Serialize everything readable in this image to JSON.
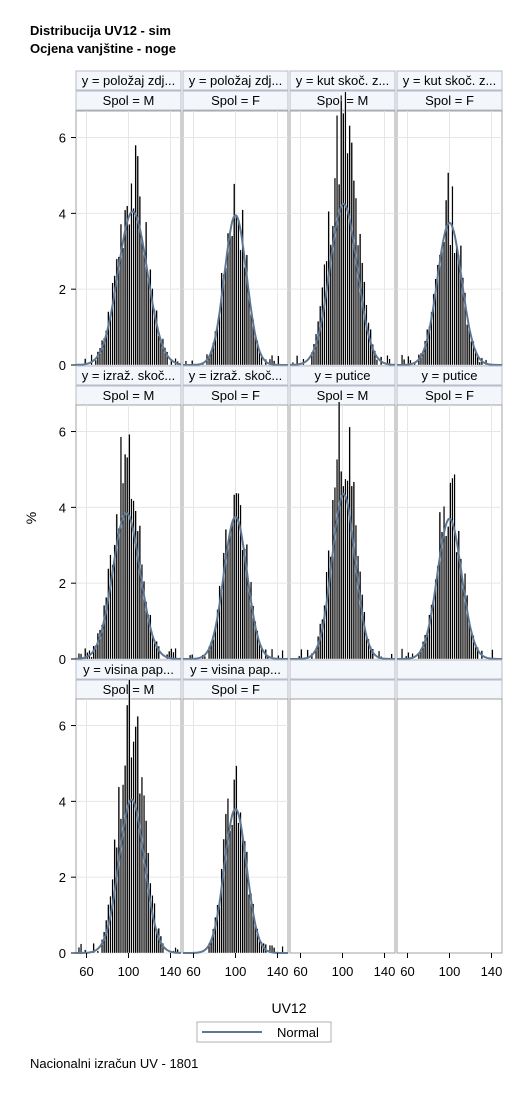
{
  "titles": [
    "Distribucija UV12 - sim",
    "Ocjena vanjštine - noge"
  ],
  "footnote": "Nacionalni izračun UV - 1801",
  "chart_data": {
    "type": "bar",
    "subtype": "histogram-panel-grid",
    "xlabel": "UV12",
    "ylabel": "%",
    "xlim": [
      50,
      150
    ],
    "ylim": [
      0,
      6.7
    ],
    "xticks": [
      60,
      100,
      140
    ],
    "yticks": [
      0,
      2,
      4,
      6
    ],
    "grid": true,
    "legend": {
      "position": "bottom-center",
      "entries": [
        {
          "name": "Normal",
          "color": "#5e7894"
        }
      ]
    },
    "rows": 3,
    "cols": 4,
    "panels": [
      {
        "trait": "y = položaj zdj...",
        "sex": "Spol = M",
        "mean": 104,
        "sd": 14,
        "peak": 5.2,
        "normal_peak": 4.05,
        "seed": 3
      },
      {
        "trait": "y = položaj zdj...",
        "sex": "Spol = F",
        "mean": 100,
        "sd": 10.5,
        "peak": 4.5,
        "normal_peak": 3.95,
        "seed": 7
      },
      {
        "trait": "y = kut skoč. z...",
        "sex": "Spol = M",
        "mean": 101,
        "sd": 13,
        "peak": 6.6,
        "normal_peak": 4.25,
        "seed": 11
      },
      {
        "trait": "y = kut skoč. z...",
        "sex": "Spol = F",
        "mean": 100,
        "sd": 11.5,
        "peak": 4.4,
        "normal_peak": 3.75,
        "seed": 13
      },
      {
        "trait": "y = izraž. skoč...",
        "sex": "Spol = M",
        "mean": 98,
        "sd": 13,
        "peak": 5.4,
        "normal_peak": 3.85,
        "seed": 17
      },
      {
        "trait": "y = izraž. skoč...",
        "sex": "Spol = F",
        "mean": 100,
        "sd": 11,
        "peak": 4.45,
        "normal_peak": 3.75,
        "seed": 19
      },
      {
        "trait": "y = putice",
        "sex": "Spol = M",
        "mean": 101,
        "sd": 11,
        "peak": 6.3,
        "normal_peak": 4.35,
        "seed": 23
      },
      {
        "trait": "y = putice",
        "sex": "Spol = F",
        "mean": 100,
        "sd": 11.5,
        "peak": 4.65,
        "normal_peak": 3.7,
        "seed": 29
      },
      {
        "trait": "y = visina pap...",
        "sex": "Spol = M",
        "mean": 103,
        "sd": 12,
        "peak": 6.3,
        "normal_peak": 4.05,
        "seed": 31
      },
      {
        "trait": "y = visina pap...",
        "sex": "Spol = F",
        "mean": 100,
        "sd": 10.5,
        "peak": 4.6,
        "normal_peak": 3.8,
        "seed": 37
      },
      {
        "trait": "",
        "sex": "",
        "empty": true
      },
      {
        "trait": "",
        "sex": "",
        "empty": true
      }
    ],
    "colors": {
      "bars": "#000000",
      "normal": "#5e7894",
      "header_fill": "#f3f6fb",
      "header_border": "#b8bcc8",
      "grid": "#e6e6e6"
    }
  }
}
